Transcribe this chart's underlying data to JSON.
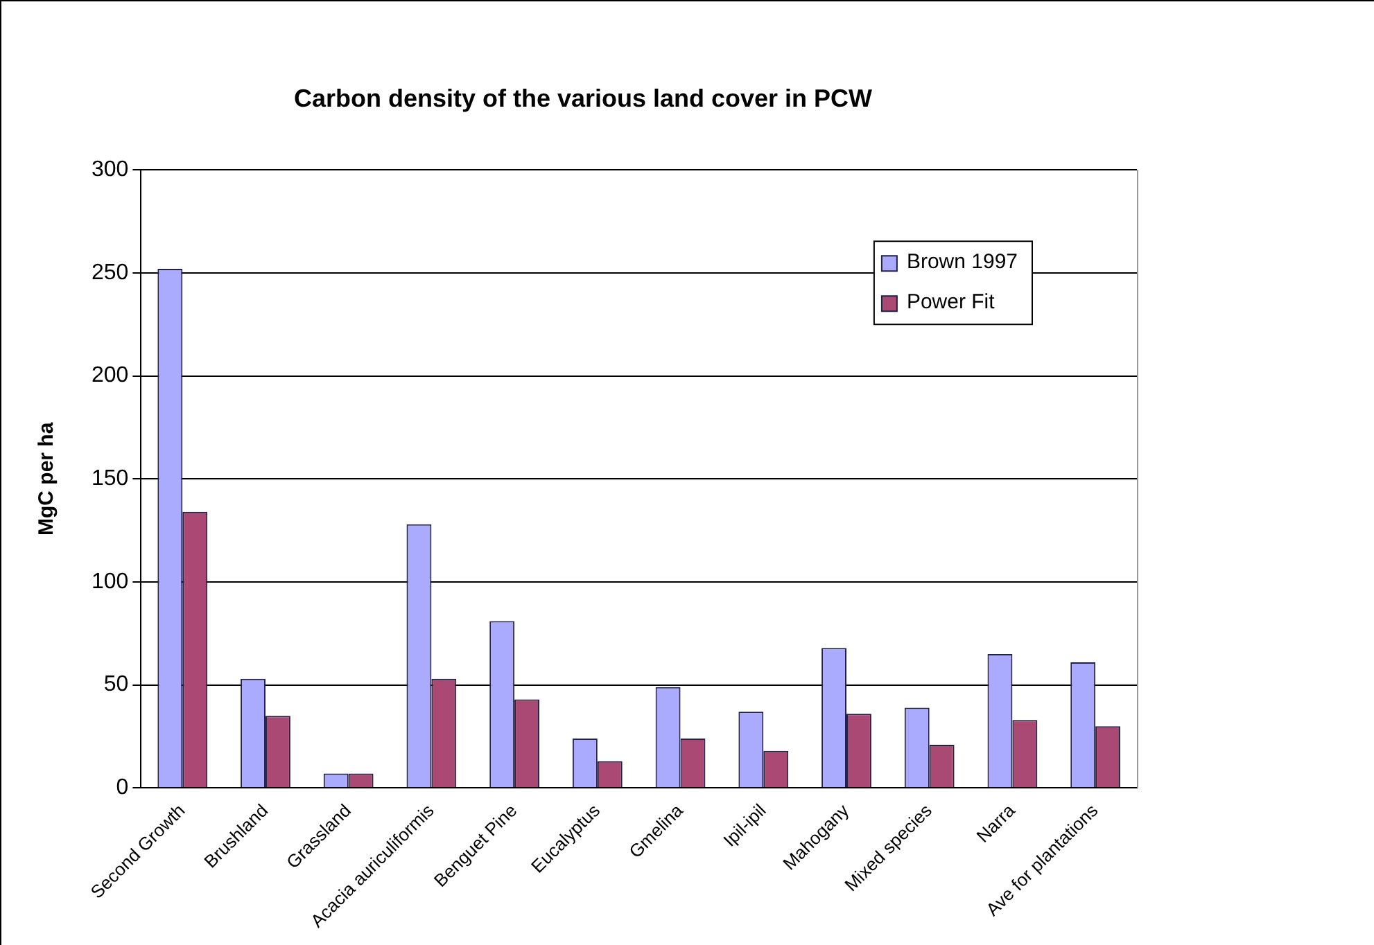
{
  "chart_data": {
    "type": "bar",
    "title": "Carbon density of the various land cover in PCW",
    "ylabel": "MgC per ha",
    "categories": [
      "Second Growth",
      "Brushland",
      "Grassland",
      "Acacia auriculiformis",
      "Benguet Pine",
      "Eucalyptus",
      "Gmelina",
      "Ipil-ipil",
      "Mahogany",
      "Mixed species",
      "Narra",
      "Ave for plantations"
    ],
    "series": [
      {
        "name": "Brown 1997",
        "color": "#aaaaff",
        "values": [
          252,
          53,
          7,
          128,
          81,
          24,
          49,
          37,
          68,
          39,
          65,
          61
        ]
      },
      {
        "name": "Power Fit",
        "color": "#aa4a74",
        "values": [
          134,
          35,
          7,
          53,
          43,
          13,
          24,
          18,
          36,
          21,
          33,
          30
        ]
      }
    ],
    "ylim": [
      0,
      300
    ],
    "yticks": [
      0,
      50,
      100,
      150,
      200,
      250,
      300
    ],
    "grid": "y",
    "legend": "top right"
  }
}
